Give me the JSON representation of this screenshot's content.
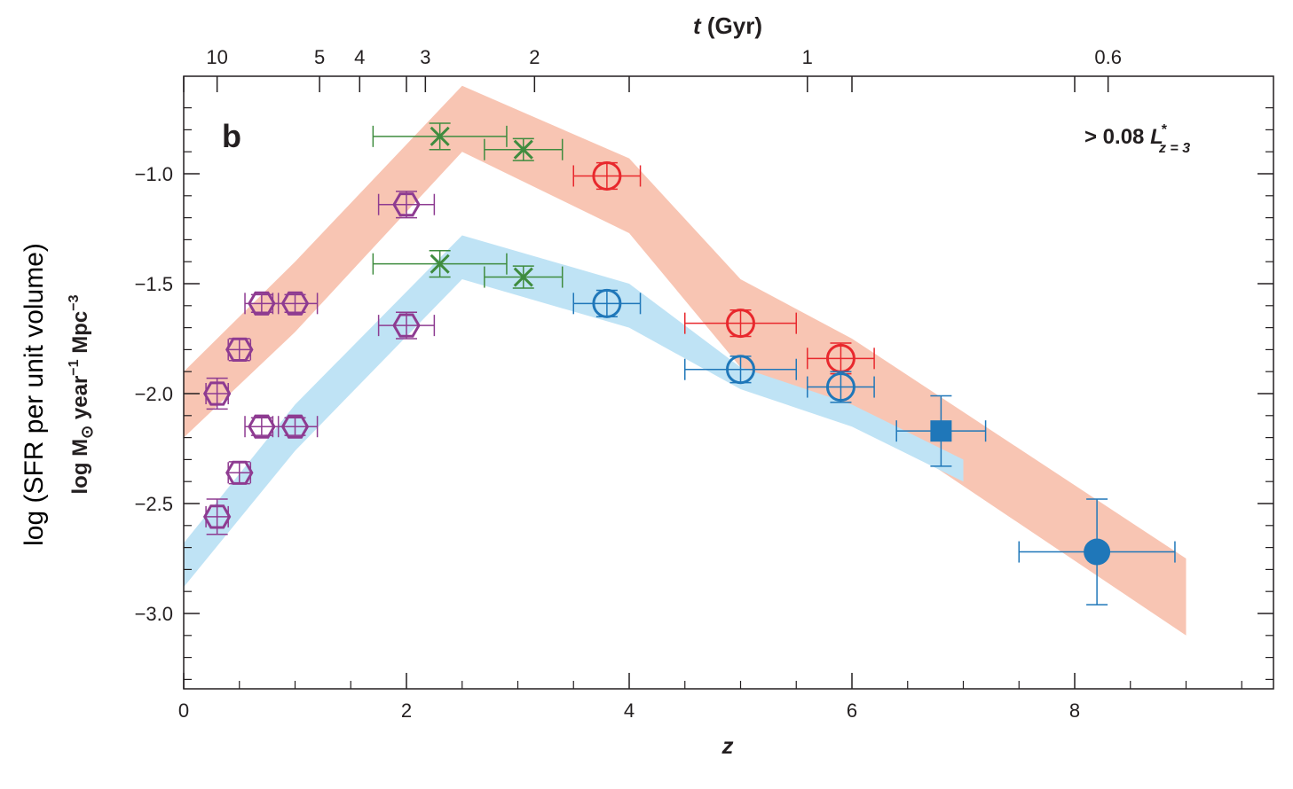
{
  "chart_data": {
    "type": "scatter",
    "panel_label": "b",
    "annotation": {
      "prefix": "> 0.08 ",
      "L": "L",
      "sup": "*",
      "sub": "z = 3"
    },
    "ylabel_outer": "log (SFR per unit volume)",
    "ylabel_inner": {
      "pre": "log M",
      "sym": "⊙",
      "mid": " year",
      "exp1": "−1",
      "post": " Mpc",
      "exp2": "−3"
    },
    "xlabel": "z",
    "x2label": {
      "t": "t",
      "rest": " (Gyr)"
    },
    "xlim": [
      0,
      9.8
    ],
    "ylim": [
      -3.35,
      -0.55
    ],
    "x_ticks": [
      0,
      2,
      4,
      6,
      8
    ],
    "x_tick_labels": [
      "0",
      "2",
      "4",
      "6",
      "8"
    ],
    "y_ticks": [
      -1.0,
      -1.5,
      -2.0,
      -2.5,
      -3.0
    ],
    "y_tick_labels": [
      "−1.0",
      "−1.5",
      "−2.0",
      "−2.5",
      "−3.0"
    ],
    "top_ticks": [
      {
        "label": "10",
        "z": 0.3
      },
      {
        "label": "5",
        "z": 1.22
      },
      {
        "label": "4",
        "z": 1.58
      },
      {
        "label": "3",
        "z": 2.17
      },
      {
        "label": "2",
        "z": 3.15
      },
      {
        "label": "1",
        "z": 5.6
      },
      {
        "label": "0.6",
        "z": 8.3
      }
    ],
    "bands": [
      {
        "name": "upper",
        "color": "#f8c5b3",
        "upper": [
          [
            0,
            -1.9
          ],
          [
            1,
            -1.4
          ],
          [
            2.5,
            -0.6
          ],
          [
            4,
            -0.93
          ],
          [
            5,
            -1.48
          ],
          [
            6,
            -1.75
          ],
          [
            9,
            -2.75
          ]
        ],
        "lower": [
          [
            0,
            -2.2
          ],
          [
            1,
            -1.72
          ],
          [
            2.5,
            -0.9
          ],
          [
            4,
            -1.27
          ],
          [
            5,
            -1.88
          ],
          [
            6,
            -2.08
          ],
          [
            9,
            -3.1
          ]
        ]
      },
      {
        "name": "lower",
        "color": "#bfe3f5",
        "upper": [
          [
            0,
            -2.68
          ],
          [
            1,
            -2.05
          ],
          [
            2.5,
            -1.28
          ],
          [
            4,
            -1.5
          ],
          [
            5,
            -1.88
          ],
          [
            6,
            -2.05
          ],
          [
            7,
            -2.3
          ]
        ],
        "lower": [
          [
            0,
            -2.88
          ],
          [
            1,
            -2.26
          ],
          [
            2.5,
            -1.48
          ],
          [
            4,
            -1.7
          ],
          [
            5,
            -1.98
          ],
          [
            6,
            -2.15
          ],
          [
            7,
            -2.4
          ]
        ]
      }
    ],
    "series": [
      {
        "marker": "hexagon",
        "color": "#8e3b91",
        "points": [
          {
            "x": 0.3,
            "y": -2.0,
            "xerr": 0.1,
            "yerr": 0.07
          },
          {
            "x": 0.5,
            "y": -1.8,
            "xerr": 0.1,
            "yerr": 0.05
          },
          {
            "x": 0.7,
            "y": -1.59,
            "xerr": 0.15,
            "yerr": 0.04
          },
          {
            "x": 1.0,
            "y": -1.59,
            "xerr": 0.2,
            "yerr": 0.04
          },
          {
            "x": 2.0,
            "y": -1.14,
            "xerr": 0.25,
            "yerr": 0.06
          },
          {
            "x": 0.3,
            "y": -2.56,
            "xerr": 0.1,
            "yerr": 0.08
          },
          {
            "x": 0.5,
            "y": -2.36,
            "xerr": 0.1,
            "yerr": 0.05
          },
          {
            "x": 0.7,
            "y": -2.15,
            "xerr": 0.15,
            "yerr": 0.04
          },
          {
            "x": 1.0,
            "y": -2.15,
            "xerr": 0.2,
            "yerr": 0.04
          },
          {
            "x": 2.0,
            "y": -1.69,
            "xerr": 0.25,
            "yerr": 0.06
          }
        ]
      },
      {
        "marker": "asterisk",
        "color": "#3f8c3f",
        "points": [
          {
            "x": 2.3,
            "y": -0.83,
            "xerr": 0.6,
            "yerr": 0.06
          },
          {
            "x": 3.05,
            "y": -0.89,
            "xerr": 0.35,
            "yerr": 0.05
          },
          {
            "x": 2.3,
            "y": -1.41,
            "xerr": 0.6,
            "yerr": 0.06
          },
          {
            "x": 3.05,
            "y": -1.47,
            "xerr": 0.35,
            "yerr": 0.05
          }
        ]
      },
      {
        "marker": "open-circle",
        "color": "#e8282d",
        "points": [
          {
            "x": 3.8,
            "y": -1.01,
            "xerr": 0.3,
            "yerr": 0.06
          },
          {
            "x": 5.0,
            "y": -1.68,
            "xerr": 0.5,
            "yerr": 0.06
          },
          {
            "x": 5.9,
            "y": -1.84,
            "xerr": 0.3,
            "yerr": 0.07
          }
        ]
      },
      {
        "marker": "open-circle",
        "color": "#1f77b9",
        "points": [
          {
            "x": 3.8,
            "y": -1.59,
            "xerr": 0.3,
            "yerr": 0.06
          },
          {
            "x": 5.0,
            "y": -1.89,
            "xerr": 0.5,
            "yerr": 0.06
          },
          {
            "x": 5.9,
            "y": -1.97,
            "xerr": 0.3,
            "yerr": 0.07
          }
        ]
      },
      {
        "marker": "filled-square",
        "color": "#1f77b9",
        "points": [
          {
            "x": 6.8,
            "y": -2.17,
            "xerr": 0.4,
            "yerr": 0.16
          }
        ]
      },
      {
        "marker": "filled-circle",
        "color": "#1f77b9",
        "points": [
          {
            "x": 8.2,
            "y": -2.72,
            "xerr": 0.7,
            "yerr": 0.24
          }
        ]
      }
    ]
  }
}
